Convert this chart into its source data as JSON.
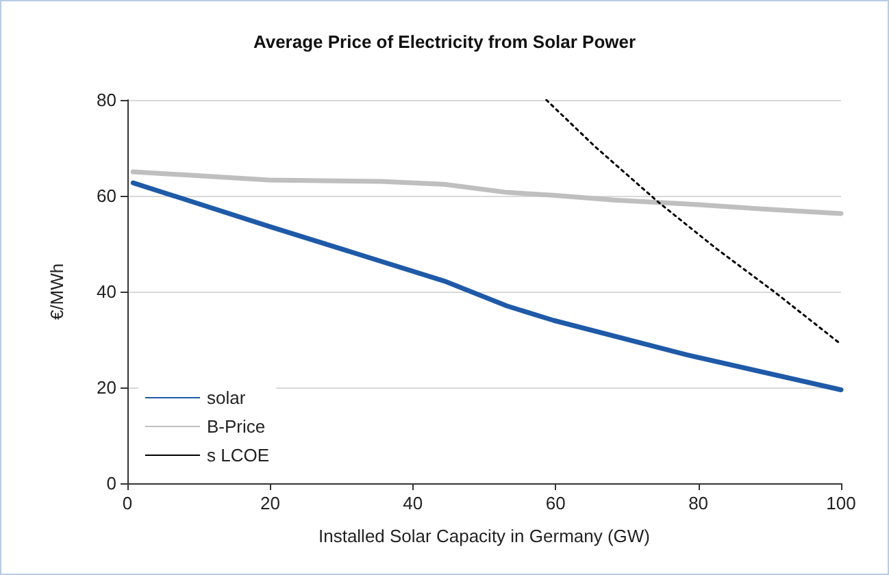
{
  "chart_data": {
    "type": "line",
    "title": "Average Price of Electricity from Solar Power",
    "xlabel": "Installed Solar Capacity in Germany (GW)",
    "ylabel": "€/MWh",
    "xlim": [
      0,
      100
    ],
    "xticks": [
      0,
      20,
      40,
      60,
      80,
      100
    ],
    "ylim": [
      0,
      80
    ],
    "yticks": [
      0,
      20,
      40,
      60,
      80
    ],
    "grid": "y",
    "legend": "bottom left",
    "marker": "none",
    "series": [
      {
        "name": "solar",
        "color": "#1f5aa8",
        "line_style": "solid",
        "x": [
          0.8,
          19.9,
          44.4,
          53.2,
          59.7,
          78.4,
          100
        ],
        "values": [
          62.7,
          53.6,
          42.2,
          37,
          34,
          26.8,
          19.5
        ]
      },
      {
        "name": "B-Price",
        "color": "#bfbfbf",
        "line_style": "solid",
        "x": [
          0.8,
          19.9,
          35.5,
          44.4,
          53.2,
          59.7,
          68.2,
          78.4,
          89.3,
          100
        ],
        "values": [
          65,
          63.3,
          63,
          62.4,
          60.7,
          60.1,
          59.1,
          58.3,
          57.2,
          56.3
        ]
      },
      {
        "name": "s LCOE",
        "color": "#000000",
        "line_style": "dotted",
        "x": [
          58.7,
          65.5,
          74.3,
          82.5,
          90.7,
          100
        ],
        "values": [
          80,
          70.3,
          58.8,
          49,
          39.9,
          29
        ]
      }
    ]
  }
}
